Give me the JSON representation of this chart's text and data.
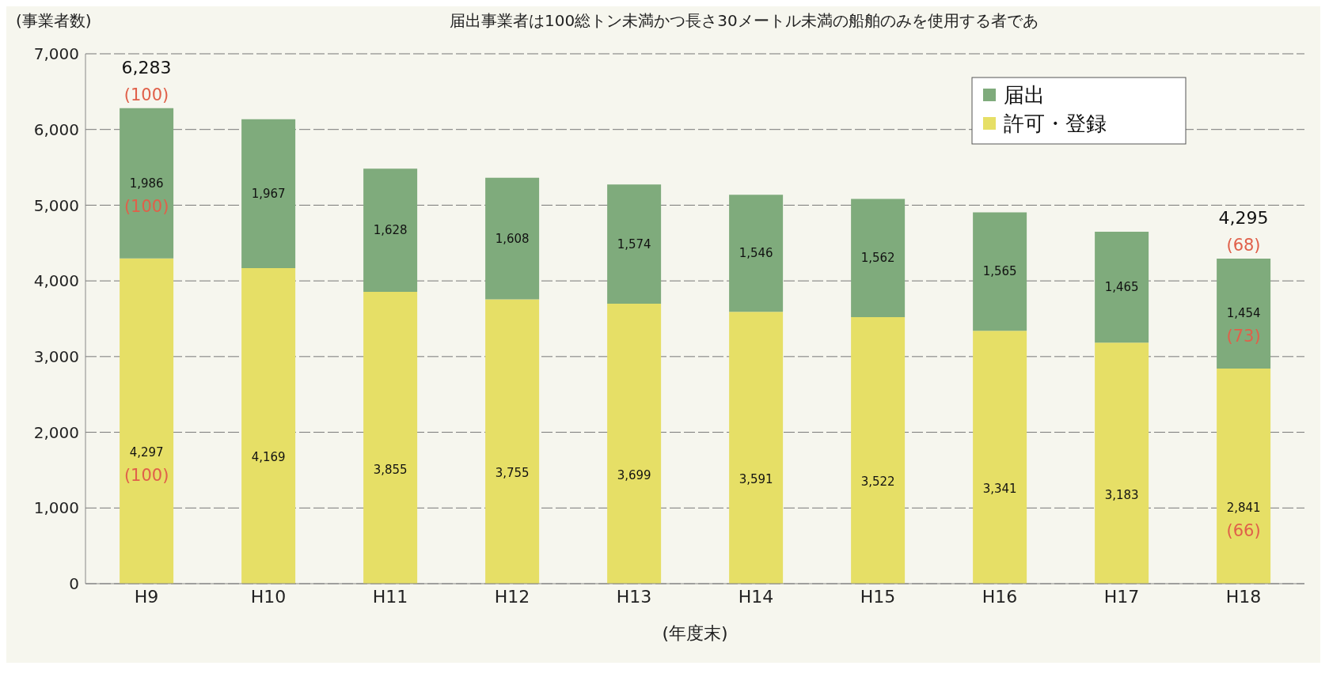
{
  "chart_data": {
    "type": "bar",
    "stacked": true,
    "subtitle": "届出事業者は100総トン未満かつ長さ30メートル未満の船舶のみを使用する者であ",
    "ylabel": "(事業者数)",
    "xlabel": "(年度末)",
    "categories": [
      "H9",
      "H10",
      "H11",
      "H12",
      "H13",
      "H14",
      "H15",
      "H16",
      "H17",
      "H18"
    ],
    "series": [
      {
        "name": "許可・登録",
        "color": "#e6df66",
        "values": [
          4297,
          4169,
          3855,
          3755,
          3699,
          3591,
          3522,
          3341,
          3183,
          2841
        ],
        "value_labels": [
          "4,297 (100)",
          "4,169",
          "3,855",
          "3,755",
          "3,699",
          "3,591",
          "3,522",
          "3,341",
          "3,183",
          "2,841 (66)"
        ]
      },
      {
        "name": "届出",
        "color": "#7fab7c",
        "values": [
          1986,
          1967,
          1628,
          1608,
          1574,
          1546,
          1562,
          1565,
          1465,
          1454
        ],
        "value_labels": [
          "1,986 (100)",
          "1,967",
          "1,628",
          "1,608",
          "1,574",
          "1,546",
          "1,562",
          "1,565",
          "1,465",
          "1,454 (73)"
        ]
      }
    ],
    "ylim": [
      0,
      7000
    ],
    "yticks": [
      {
        "value": 0,
        "label": "0"
      },
      {
        "value": 1000,
        "label": "1,000"
      },
      {
        "value": 2000,
        "label": "2,000"
      },
      {
        "value": 3000,
        "label": "3,000"
      },
      {
        "value": 4000,
        "label": "4,000"
      },
      {
        "value": 5000,
        "label": "5,000"
      },
      {
        "value": 6000,
        "label": "6,000"
      },
      {
        "value": 7000,
        "label": "7,000"
      }
    ],
    "grid": "y",
    "legend": "top right",
    "totals": [
      "6,283",
      null,
      null,
      null,
      null,
      null,
      null,
      null,
      null,
      "4,295"
    ],
    "annotations": [
      {
        "text": "(100)",
        "x": "H9",
        "y": 6283
      },
      {
        "text": "(68)",
        "x": "H18",
        "y": 4295
      }
    ]
  }
}
